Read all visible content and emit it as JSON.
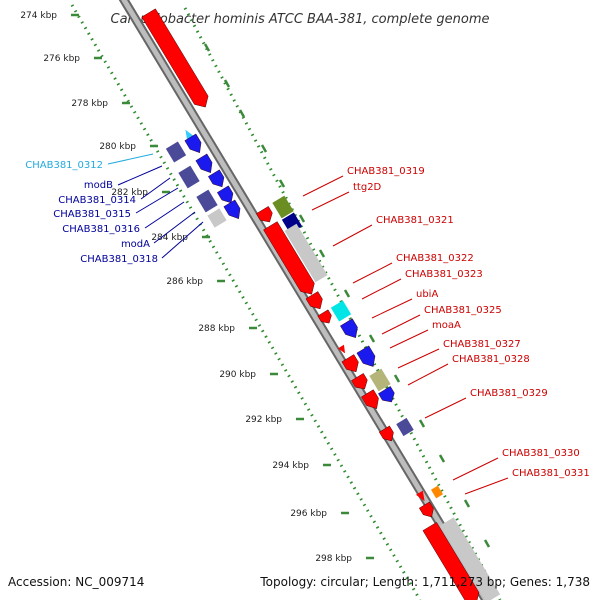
{
  "title": "Campylobacter hominis ATCC BAA-381, complete genome",
  "footer": {
    "accession": "Accession: NC_009714",
    "topology": "Topology: circular; Length: 1,711,273 bp; Genes: 1,738"
  },
  "colors": {
    "forward_cds": "#ff0000",
    "reverse_cds": "#0000ee",
    "cyan_gene": "#33ccff",
    "grey_feature": "#c8c8c8",
    "backbone": "#8a8a8a",
    "tick_dots": "#2a8a2a",
    "tick_marks": "#3a8a3a",
    "red_label": "#cc0000",
    "blue_label": "#000099",
    "cyan_label": "#22aadd"
  },
  "ticks": [
    "274 kbp",
    "276 kbp",
    "278 kbp",
    "280 kbp",
    "282 kbp",
    "284 kbp",
    "286 kbp",
    "288 kbp",
    "290 kbp",
    "292 kbp",
    "294 kbp",
    "296 kbp",
    "298 kbp"
  ],
  "left_labels": [
    {
      "text": "CHAB381_0312",
      "color": "cyan"
    },
    {
      "text": "modB",
      "color": "blue"
    },
    {
      "text": "CHAB381_0314",
      "color": "blue"
    },
    {
      "text": "CHAB381_0315",
      "color": "blue"
    },
    {
      "text": "CHAB381_0316",
      "color": "blue"
    },
    {
      "text": "modA",
      "color": "blue"
    },
    {
      "text": "CHAB381_0318",
      "color": "blue"
    }
  ],
  "right_labels": [
    {
      "text": "CHAB381_0319"
    },
    {
      "text": "ttg2D"
    },
    {
      "text": "CHAB381_0321"
    },
    {
      "text": "CHAB381_0322"
    },
    {
      "text": "CHAB381_0323"
    },
    {
      "text": "ubiA"
    },
    {
      "text": "CHAB381_0325"
    },
    {
      "text": "moaA"
    },
    {
      "text": "CHAB381_0327"
    },
    {
      "text": "CHAB381_0328"
    },
    {
      "text": "CHAB381_0329"
    },
    {
      "text": "CHAB381_0330"
    },
    {
      "text": "CHAB381_0331"
    }
  ]
}
